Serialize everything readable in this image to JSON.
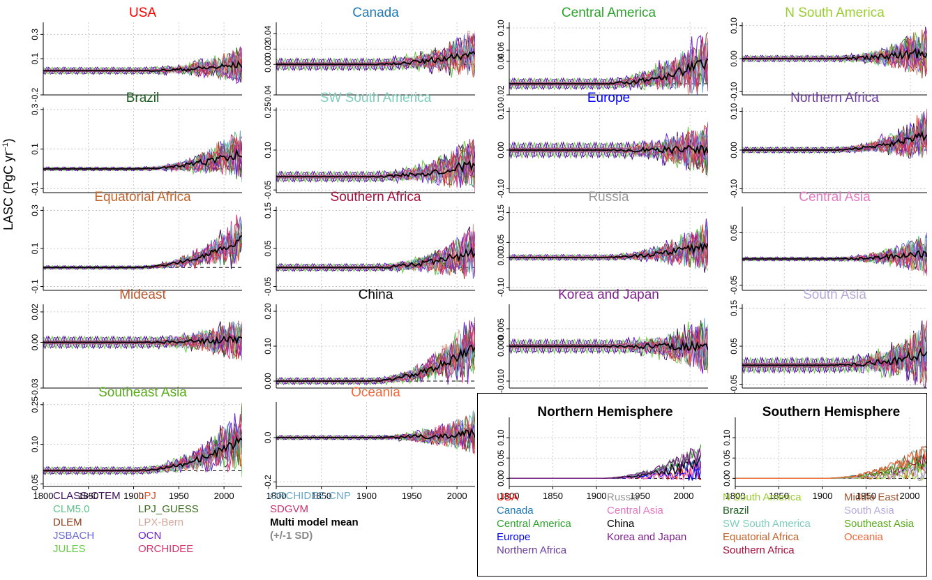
{
  "figure": {
    "ylabel": "LASC (PgC yr",
    "ylabel_sup": "−1",
    "ylabel_tail": ")"
  },
  "chart_data": [
    {
      "type": "line",
      "title": "USA",
      "title_color": "#ff0000",
      "xlim": [
        1800,
        2020
      ],
      "ylim": [
        -0.2,
        0.4
      ],
      "yticks": [
        -0.2,
        0.1,
        0.3
      ],
      "ytick_labels": [
        "-0.2",
        "0.1",
        "0.3"
      ],
      "amp": 0.03,
      "spike": 0.15,
      "trend": 0.05
    },
    {
      "type": "line",
      "title": "Canada",
      "title_color": "#1f77b4",
      "xlim": [
        1800,
        2020
      ],
      "ylim": [
        -0.04,
        0.055
      ],
      "yticks": [
        -0.04,
        0.0,
        0.02,
        0.04
      ],
      "ytick_labels": [
        "-0.04",
        "0.00",
        "0.02",
        "0.04"
      ],
      "amp": 0.008,
      "spike": 0.03,
      "trend": 0.015
    },
    {
      "type": "line",
      "title": "Central America",
      "title_color": "#2ca02c",
      "xlim": [
        1800,
        2020
      ],
      "ylim": [
        -0.02,
        0.11
      ],
      "yticks": [
        -0.02,
        0.04,
        0.06,
        0.1
      ],
      "ytick_labels": [
        "-0.02",
        "0.04",
        "0.06",
        "0.10"
      ],
      "amp": 0.01,
      "spike": 0.06,
      "trend": 0.04
    },
    {
      "type": "line",
      "title": "N South America",
      "title_color": "#9acd32",
      "xlim": [
        1800,
        2020
      ],
      "ylim": [
        -0.11,
        0.11
      ],
      "yticks": [
        -0.1,
        0.0,
        0.1
      ],
      "ytick_labels": [
        "-0.10",
        "0.00",
        "0.10"
      ],
      "amp": 0.01,
      "spike": 0.08,
      "trend": 0.02
    },
    {
      "type": "line",
      "title": "Brazil",
      "title_color": "#1b5e20",
      "xlim": [
        1800,
        2020
      ],
      "ylim": [
        -0.12,
        0.31
      ],
      "yticks": [
        -0.1,
        0.1,
        0.3
      ],
      "ytick_labels": [
        "-0.1",
        "0.1",
        "0.3"
      ],
      "amp": 0.01,
      "spike": 0.12,
      "trend": 0.08
    },
    {
      "type": "line",
      "title": "SW South America",
      "title_color": "#7fcdbb",
      "xlim": [
        1800,
        2020
      ],
      "ylim": [
        -0.06,
        0.26
      ],
      "yticks": [
        -0.05,
        0.1,
        0.25
      ],
      "ytick_labels": [
        "-0.05",
        "0.10",
        "0.25"
      ],
      "amp": 0.02,
      "spike": 0.1,
      "trend": 0.05
    },
    {
      "type": "line",
      "title": "Europe",
      "title_color": "#0000ff",
      "xlim": [
        1800,
        2020
      ],
      "ylim": [
        -0.11,
        0.11
      ],
      "yticks": [
        -0.1,
        0.0,
        0.1
      ],
      "ytick_labels": [
        "-0.10",
        "0.00",
        "0.10"
      ],
      "amp": 0.02,
      "spike": 0.07,
      "trend": 0.0
    },
    {
      "type": "line",
      "title": "Northern Africa",
      "title_color": "#6a3d9a",
      "xlim": [
        1800,
        2020
      ],
      "ylim": [
        -0.11,
        0.11
      ],
      "yticks": [
        -0.1,
        0.0,
        0.1
      ],
      "ytick_labels": [
        "-0.10",
        "0.00",
        "0.10"
      ],
      "amp": 0.008,
      "spike": 0.06,
      "trend": 0.04
    },
    {
      "type": "line",
      "title": "Equatorial Africa",
      "title_color": "#c0642b",
      "xlim": [
        1800,
        2020
      ],
      "ylim": [
        -0.12,
        0.32
      ],
      "yticks": [
        -0.1,
        0.1,
        0.3
      ],
      "ytick_labels": [
        "-0.1",
        "0.1",
        "0.3"
      ],
      "amp": 0.01,
      "spike": 0.1,
      "trend": 0.15
    },
    {
      "type": "line",
      "title": "Southern Africa",
      "title_color": "#a50f3a",
      "xlim": [
        1800,
        2020
      ],
      "ylim": [
        -0.06,
        0.16
      ],
      "yticks": [
        -0.05,
        0.05,
        0.15
      ],
      "ytick_labels": [
        "-0.05",
        "0.05",
        "0.15"
      ],
      "amp": 0.01,
      "spike": 0.07,
      "trend": 0.04
    },
    {
      "type": "line",
      "title": "Russia",
      "title_color": "#999999",
      "xlim": [
        1800,
        2020
      ],
      "ylim": [
        -0.11,
        0.17
      ],
      "yticks": [
        -0.1,
        0.0,
        0.05,
        0.15
      ],
      "ytick_labels": [
        "-0.10",
        "0.00",
        "0.05",
        "0.15"
      ],
      "amp": 0.01,
      "spike": 0.08,
      "trend": 0.04
    },
    {
      "type": "line",
      "title": "Central Asia",
      "title_color": "#e377c2",
      "xlim": [
        1800,
        2020
      ],
      "ylim": [
        -0.06,
        0.1
      ],
      "yticks": [
        -0.05,
        0.05
      ],
      "ytick_labels": [
        "-0.05",
        "0.05"
      ],
      "amp": 0.004,
      "spike": 0.04,
      "trend": 0.01
    },
    {
      "type": "line",
      "title": "Mideast",
      "title_color": "#b5542a",
      "xlim": [
        1800,
        2020
      ],
      "ylim": [
        -0.03,
        0.025
      ],
      "yticks": [
        -0.03,
        0.0,
        0.02
      ],
      "ytick_labels": [
        "-0.03",
        "0.00",
        "0.02"
      ],
      "amp": 0.004,
      "spike": 0.015,
      "trend": 0.002
    },
    {
      "type": "line",
      "title": "China",
      "title_color": "#000000",
      "xlim": [
        1800,
        2020
      ],
      "ylim": [
        -0.02,
        0.22
      ],
      "yticks": [
        0.0,
        0.1,
        0.2
      ],
      "ytick_labels": [
        "0.00",
        "0.10",
        "0.20"
      ],
      "amp": 0.01,
      "spike": 0.08,
      "trend": 0.1
    },
    {
      "type": "line",
      "title": "Korea and Japan",
      "title_color": "#7b1f8a",
      "xlim": [
        1800,
        2020
      ],
      "ylim": [
        -0.012,
        0.012
      ],
      "yticks": [
        -0.01,
        0.0,
        0.005
      ],
      "ytick_labels": [
        "-0.010",
        "0.000",
        "0.005"
      ],
      "amp": 0.002,
      "spike": 0.008,
      "trend": 0.0
    },
    {
      "type": "line",
      "title": "South Asia",
      "title_color": "#b8a9d9",
      "xlim": [
        1800,
        2020
      ],
      "ylim": [
        -0.06,
        0.16
      ],
      "yticks": [
        -0.05,
        0.05,
        0.15
      ],
      "ytick_labels": [
        "-0.05",
        "0.05",
        "0.15"
      ],
      "amp": 0.02,
      "spike": 0.08,
      "trend": 0.03
    },
    {
      "type": "line",
      "title": "Southeast Asia",
      "title_color": "#5aab1c",
      "xlim": [
        1800,
        2020
      ],
      "ylim": [
        -0.06,
        0.26
      ],
      "yticks": [
        -0.05,
        0.1,
        0.25
      ],
      "ytick_labels": [
        "-0.05",
        "0.10",
        "0.25"
      ],
      "amp": 0.015,
      "spike": 0.1,
      "trend": 0.12
    },
    {
      "type": "line",
      "title": "Oceania",
      "title_color": "#f06a3b",
      "xlim": [
        1800,
        2020
      ],
      "ylim": [
        -0.22,
        0.16
      ],
      "yticks": [
        -0.2,
        0.0
      ],
      "ytick_labels": [
        "-0.2",
        "0.0"
      ],
      "amp": 0.01,
      "spike": 0.1,
      "trend": 0.02
    },
    {
      "type": "line",
      "title": "Northern Hemisphere",
      "title_color": "#000000",
      "xlim": [
        1800,
        2020
      ],
      "ylim": [
        -0.02,
        0.15
      ],
      "yticks": [
        0.0,
        0.05,
        0.1
      ],
      "ytick_labels": [
        "0.00",
        "0.05",
        "0.10"
      ],
      "hemi": true,
      "series": [
        {
          "name": "USA",
          "color": "#ff0000"
        },
        {
          "name": "Canada",
          "color": "#1f77b4"
        },
        {
          "name": "Central America",
          "color": "#2ca02c"
        },
        {
          "name": "Europe",
          "color": "#0000ff"
        },
        {
          "name": "Northern Africa",
          "color": "#6a3d9a"
        },
        {
          "name": "Russia",
          "color": "#999999"
        },
        {
          "name": "Central Asia",
          "color": "#e377c2"
        },
        {
          "name": "China",
          "color": "#000000"
        },
        {
          "name": "Korea and Japan",
          "color": "#7b1f8a"
        }
      ]
    },
    {
      "type": "line",
      "title": "Southern Hemisphere",
      "title_color": "#000000",
      "xlim": [
        1800,
        2020
      ],
      "ylim": [
        -0.02,
        0.15
      ],
      "yticks": [
        0.0,
        0.05,
        0.1
      ],
      "ytick_labels": [
        "0.00",
        "0.05",
        "0.10"
      ],
      "hemi": true,
      "series": [
        {
          "name": "N South America",
          "color": "#9acd32"
        },
        {
          "name": "Brazil",
          "color": "#1b5e20"
        },
        {
          "name": "SW South America",
          "color": "#7fcdbb"
        },
        {
          "name": "Equatorial Africa",
          "color": "#c0642b"
        },
        {
          "name": "Southern Africa",
          "color": "#a50f3a"
        },
        {
          "name": "Middle East",
          "color": "#a0522d"
        },
        {
          "name": "South Asia",
          "color": "#b8a9d9"
        },
        {
          "name": "Southeast Asia",
          "color": "#5aab1c"
        },
        {
          "name": "Oceania",
          "color": "#f06a3b"
        }
      ]
    }
  ],
  "xticks": [
    1800,
    1850,
    1900,
    1950,
    2000
  ],
  "models": [
    {
      "name": "CLASS-CTEM",
      "color": "#3f0f5e"
    },
    {
      "name": "CLM5.0",
      "color": "#5fc08a"
    },
    {
      "name": "DLEM",
      "color": "#8b3a1a"
    },
    {
      "name": "JSBACH",
      "color": "#6a6ad6"
    },
    {
      "name": "JULES",
      "color": "#66cc44"
    },
    {
      "name": "LPJ",
      "color": "#e0552b"
    },
    {
      "name": "LPJ_GUESS",
      "color": "#3a6b1e"
    },
    {
      "name": "LPX-Bern",
      "color": "#d4a89a"
    },
    {
      "name": "OCN",
      "color": "#6a1fd0"
    },
    {
      "name": "ORCHIDEE",
      "color": "#d6336c"
    },
    {
      "name": "ORCHIDEE-CNP",
      "color": "#6aa6c8"
    },
    {
      "name": "SDGVM",
      "color": "#c7306e"
    }
  ],
  "mmm": {
    "label": "Multi model mean",
    "sd_label": "(+/-1 SD)"
  },
  "nh_legend": [
    {
      "name": "USA",
      "color": "#ff0000"
    },
    {
      "name": "Canada",
      "color": "#1f77b4"
    },
    {
      "name": "Central America",
      "color": "#2ca02c"
    },
    {
      "name": "Europe",
      "color": "#0000ff"
    },
    {
      "name": "Northern Africa",
      "color": "#6a3d9a"
    },
    {
      "name": "Russia",
      "color": "#999999"
    },
    {
      "name": "Central Asia",
      "color": "#e377c2"
    },
    {
      "name": "China",
      "color": "#000000"
    },
    {
      "name": "Korea and Japan",
      "color": "#7b1f8a"
    }
  ],
  "sh_legend": [
    {
      "name": "N South America",
      "color": "#9acd32"
    },
    {
      "name": "Brazil",
      "color": "#1b5e20"
    },
    {
      "name": "SW South America",
      "color": "#7fcdbb"
    },
    {
      "name": "Equatorial Africa",
      "color": "#c0642b"
    },
    {
      "name": "Southern Africa",
      "color": "#a50f3a"
    },
    {
      "name": "Middle East",
      "color": "#a0522d"
    },
    {
      "name": "South Asia",
      "color": "#b8a9d9"
    },
    {
      "name": "Southeast Asia",
      "color": "#5aab1c"
    },
    {
      "name": "Oceania",
      "color": "#f06a3b"
    }
  ]
}
